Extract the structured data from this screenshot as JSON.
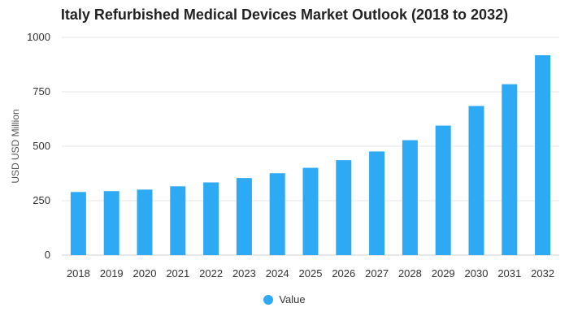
{
  "chart_data": {
    "type": "bar",
    "title": "Italy Refurbished Medical Devices Market Outlook (2018 to 2032)",
    "xlabel": "",
    "ylabel": "USD USD Million",
    "categories": [
      "2018",
      "2019",
      "2020",
      "2021",
      "2022",
      "2023",
      "2024",
      "2025",
      "2026",
      "2027",
      "2028",
      "2029",
      "2030",
      "2031",
      "2032"
    ],
    "series": [
      {
        "name": "Value",
        "color": "#2eaaf5",
        "values": [
          290,
          294,
          301,
          316,
          334,
          354,
          376,
          401,
          436,
          476,
          528,
          595,
          685,
          785,
          918
        ]
      }
    ],
    "ylim": [
      0,
      1000
    ],
    "yticks": [
      0,
      250,
      500,
      750,
      1000
    ],
    "grid": true,
    "legend_position": "bottom-center"
  }
}
